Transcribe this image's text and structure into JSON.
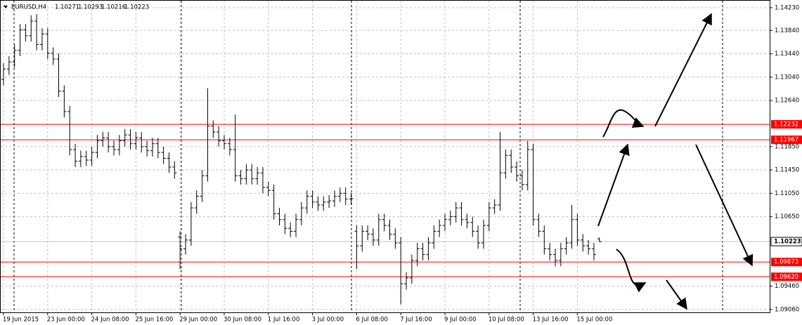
{
  "chart_data": {
    "type": "ohlc",
    "title": "EURUSD,H4",
    "color": "#000000",
    "level_color": "#ff0000",
    "grid": true,
    "ylim": [
      1.0901,
      1.1435
    ],
    "yticks": [
      {
        "value": 1.1423,
        "label": "1.14230"
      },
      {
        "value": 1.1384,
        "label": "1.13840"
      },
      {
        "value": 1.1344,
        "label": "1.13440"
      },
      {
        "value": 1.1304,
        "label": "1.13040"
      },
      {
        "value": 1.1264,
        "label": "1.12640"
      },
      {
        "value": 1.1185,
        "label": "1.11850"
      },
      {
        "value": 1.1145,
        "label": "1.11450"
      },
      {
        "value": 1.1105,
        "label": "1.11050"
      },
      {
        "value": 1.1065,
        "label": "1.10650"
      },
      {
        "value": 1.0946,
        "label": "1.09460"
      },
      {
        "value": 1.0906,
        "label": "1.09060"
      }
    ],
    "levels": [
      1.12232,
      1.11967,
      1.09873,
      {
        "value": 1.0962,
        "label": "1.09620"
      }
    ],
    "categories": [
      "19 Jun 2015",
      null,
      null,
      null,
      null,
      null,
      null,
      null,
      "23 Jun 00:00",
      null,
      null,
      null,
      null,
      null,
      null,
      null,
      "24 Jun 08:00",
      null,
      null,
      null,
      null,
      null,
      null,
      null,
      "25 Jun 16:00",
      null,
      null,
      null,
      null,
      null,
      null,
      null,
      "29 Jun 00:00",
      null,
      null,
      null,
      null,
      null,
      null,
      null,
      "30 Jun 08:00",
      null,
      null,
      null,
      null,
      null,
      null,
      null,
      "1 Jul 16:00",
      null,
      null,
      null,
      null,
      null,
      null,
      null,
      "3 Jul 00:00",
      null,
      null,
      null,
      null,
      null,
      null,
      null,
      "6 Jul 08:00",
      null,
      null,
      null,
      null,
      null,
      null,
      null,
      "7 Jul 16:00",
      null,
      null,
      null,
      null,
      null,
      null,
      null,
      "9 Jul 00:00",
      null,
      null,
      null,
      null,
      null,
      null,
      null,
      "10 Jul 08:00",
      null,
      null,
      null,
      null,
      null,
      null,
      null,
      "13 Jul 16:00",
      null,
      null,
      null,
      null,
      null,
      null,
      null,
      "15 Jul 00:00",
      null,
      null,
      null,
      null
    ],
    "open": [
      1.13,
      1.1318,
      1.133,
      1.135,
      1.1385,
      1.1375,
      1.14,
      1.136,
      1.1378,
      1.1345,
      1.1335,
      1.128,
      1.1245,
      1.118,
      1.116,
      1.1168,
      1.1162,
      1.1175,
      1.1195,
      1.12,
      1.1185,
      1.118,
      1.1195,
      1.1205,
      1.119,
      1.12,
      1.1185,
      1.1178,
      1.119,
      1.1175,
      1.1165,
      1.115,
      1.103,
      1.101,
      1.1025,
      1.108,
      1.11,
      1.1135,
      1.122,
      1.121,
      1.1195,
      1.119,
      1.118,
      1.1135,
      1.113,
      1.1145,
      1.113,
      1.114,
      1.1115,
      1.111,
      1.107,
      1.106,
      1.1045,
      1.104,
      1.106,
      1.108,
      1.11,
      1.109,
      1.1085,
      1.109,
      1.1092,
      1.11,
      1.1105,
      1.1095,
      1.104,
      1.1015,
      1.104,
      1.1035,
      1.1025,
      1.106,
      1.105,
      1.1035,
      1.102,
      1.095,
      1.096,
      1.099,
      1.101,
      1.1,
      1.102,
      1.104,
      1.105,
      1.106,
      1.1065,
      1.108,
      1.106,
      1.1055,
      1.104,
      1.102,
      1.105,
      1.108,
      1.1085,
      1.114,
      1.117,
      1.115,
      1.1135,
      1.112,
      1.118,
      1.106,
      1.104,
      1.101,
      1.1,
      1.099,
      1.101,
      1.102,
      1.106,
      1.1025,
      1.1015,
      1.101,
      1.10271
    ],
    "high": [
      1.1328,
      1.134,
      1.136,
      1.1395,
      1.1395,
      1.141,
      1.1412,
      1.1388,
      1.1388,
      1.1355,
      1.1345,
      1.129,
      1.1255,
      1.119,
      1.1178,
      1.1178,
      1.1185,
      1.1205,
      1.121,
      1.121,
      1.1195,
      1.1205,
      1.1215,
      1.1215,
      1.121,
      1.121,
      1.1195,
      1.12,
      1.12,
      1.1185,
      1.1175,
      1.116,
      1.104,
      1.1035,
      1.109,
      1.111,
      1.1145,
      1.1285,
      1.123,
      1.122,
      1.1205,
      1.12,
      1.124,
      1.1145,
      1.1155,
      1.1155,
      1.115,
      1.115,
      1.1125,
      1.112,
      1.108,
      1.107,
      1.1055,
      1.107,
      1.109,
      1.111,
      1.111,
      1.11,
      1.11,
      1.1102,
      1.111,
      1.1115,
      1.1115,
      1.1106,
      1.105,
      1.105,
      1.105,
      1.1045,
      1.107,
      1.107,
      1.106,
      1.1045,
      1.103,
      1.097,
      1.1,
      1.102,
      1.102,
      1.103,
      1.105,
      1.106,
      1.107,
      1.1075,
      1.109,
      1.109,
      1.107,
      1.1065,
      1.105,
      1.106,
      1.109,
      1.1095,
      1.121,
      1.118,
      1.118,
      1.116,
      1.1145,
      1.1195,
      1.119,
      1.107,
      1.105,
      1.102,
      1.101,
      1.102,
      1.103,
      1.1085,
      1.107,
      1.1035,
      1.1025,
      1.102,
      1.10293
    ],
    "low": [
      1.129,
      1.1308,
      1.132,
      1.134,
      1.1365,
      1.1365,
      1.135,
      1.135,
      1.1335,
      1.1325,
      1.127,
      1.1235,
      1.117,
      1.115,
      1.115,
      1.1152,
      1.1152,
      1.1165,
      1.1185,
      1.1175,
      1.117,
      1.117,
      1.1185,
      1.118,
      1.118,
      1.1175,
      1.1168,
      1.1168,
      1.1165,
      1.1155,
      1.114,
      1.113,
      1.0975,
      1.1,
      1.1015,
      1.107,
      1.109,
      1.1125,
      1.12,
      1.1185,
      1.118,
      1.117,
      1.1125,
      1.112,
      1.112,
      1.112,
      1.112,
      1.1105,
      1.11,
      1.106,
      1.105,
      1.1035,
      1.103,
      1.103,
      1.105,
      1.107,
      1.108,
      1.1075,
      1.1075,
      1.108,
      1.1082,
      1.109,
      1.1085,
      1.1085,
      1.0975,
      1.1005,
      1.1025,
      1.1015,
      1.1015,
      1.104,
      1.1025,
      1.101,
      1.0915,
      1.094,
      1.095,
      1.098,
      1.099,
      1.099,
      1.101,
      1.103,
      1.104,
      1.105,
      1.1055,
      1.105,
      1.1045,
      1.103,
      1.101,
      1.101,
      1.104,
      1.107,
      1.1075,
      1.113,
      1.114,
      1.1125,
      1.111,
      1.111,
      1.105,
      1.103,
      1.1,
      1.099,
      1.098,
      1.098,
      1.1,
      1.101,
      1.1015,
      1.1005,
      1.1,
      1.099,
      1.10216
    ],
    "close": [
      1.1318,
      1.133,
      1.135,
      1.1385,
      1.1375,
      1.14,
      1.136,
      1.1378,
      1.1345,
      1.1335,
      1.128,
      1.1245,
      1.118,
      1.116,
      1.1168,
      1.1162,
      1.1175,
      1.1195,
      1.12,
      1.1185,
      1.118,
      1.1195,
      1.1205,
      1.119,
      1.12,
      1.1185,
      1.1178,
      1.119,
      1.1175,
      1.1165,
      1.115,
      1.114,
      1.101,
      1.1025,
      1.108,
      1.11,
      1.1135,
      1.122,
      1.121,
      1.1195,
      1.119,
      1.118,
      1.1135,
      1.113,
      1.1145,
      1.113,
      1.114,
      1.1115,
      1.111,
      1.107,
      1.106,
      1.1045,
      1.104,
      1.106,
      1.108,
      1.11,
      1.109,
      1.1085,
      1.109,
      1.1092,
      1.11,
      1.1105,
      1.1095,
      1.1096,
      1.1015,
      1.104,
      1.1035,
      1.1025,
      1.106,
      1.105,
      1.1035,
      1.102,
      1.095,
      1.096,
      1.099,
      1.101,
      1.1,
      1.102,
      1.104,
      1.105,
      1.106,
      1.1065,
      1.108,
      1.106,
      1.1055,
      1.104,
      1.102,
      1.105,
      1.108,
      1.1085,
      1.114,
      1.117,
      1.115,
      1.1135,
      1.112,
      1.118,
      1.106,
      1.104,
      1.101,
      1.1,
      1.099,
      1.101,
      1.102,
      1.106,
      1.1025,
      1.1015,
      1.101,
      1.1,
      1.10223
    ]
  }
}
